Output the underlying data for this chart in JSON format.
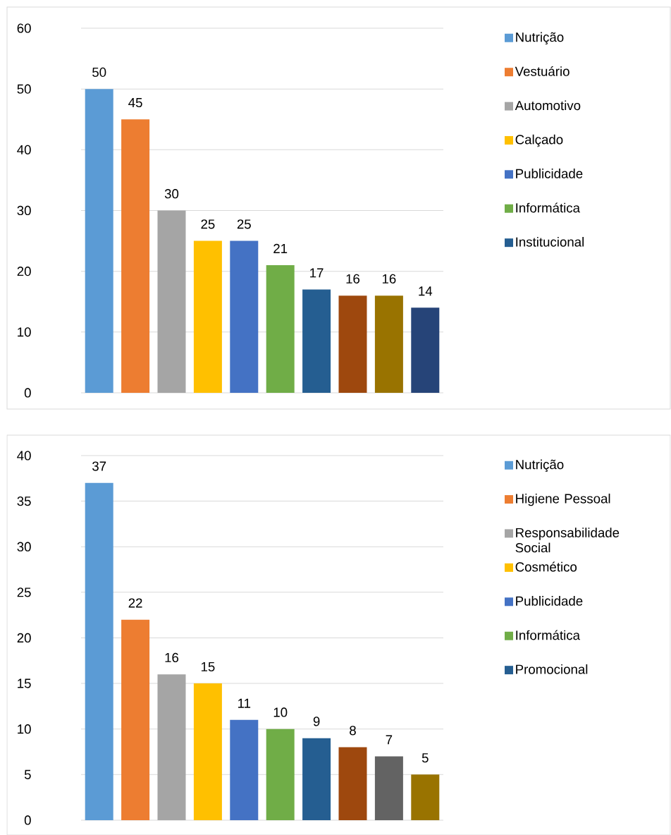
{
  "chart_data": [
    {
      "type": "bar",
      "categories": [
        null,
        null,
        null,
        null,
        null,
        null,
        null,
        null,
        null,
        null
      ],
      "ylim": [
        0,
        60
      ],
      "yticks": [
        0,
        10,
        20,
        30,
        40,
        50,
        60
      ],
      "grid": "y",
      "legend": "right",
      "data_labels": true,
      "series": [
        {
          "name": "Nutrição",
          "color": "#5b9bd5",
          "values": [
            50,
            null,
            null,
            null,
            null,
            null,
            null,
            null,
            null,
            null
          ]
        },
        {
          "name": "Vestuário",
          "color": "#ed7d31",
          "values": [
            null,
            45,
            null,
            null,
            null,
            null,
            null,
            null,
            null,
            null
          ]
        },
        {
          "name": "Automotivo",
          "color": "#a5a5a5",
          "values": [
            null,
            null,
            30,
            null,
            null,
            null,
            null,
            null,
            null,
            null
          ]
        },
        {
          "name": "Calçado",
          "color": "#ffc000",
          "values": [
            null,
            null,
            null,
            25,
            null,
            null,
            null,
            null,
            null,
            null
          ]
        },
        {
          "name": "Publicidade",
          "color": "#4472c4",
          "values": [
            null,
            null,
            null,
            null,
            25,
            null,
            null,
            null,
            null,
            null
          ]
        },
        {
          "name": "Informática",
          "color": "#70ad47",
          "values": [
            null,
            null,
            null,
            null,
            null,
            21,
            null,
            null,
            null,
            null
          ]
        },
        {
          "name": "Institucional",
          "color": "#255e91",
          "values": [
            null,
            null,
            null,
            null,
            null,
            null,
            17,
            null,
            null,
            null
          ]
        },
        {
          "color": "#9e480e",
          "values": [
            null,
            null,
            null,
            null,
            null,
            null,
            null,
            16,
            null,
            null
          ]
        },
        {
          "color": "#997300",
          "values": [
            null,
            null,
            null,
            null,
            null,
            null,
            null,
            null,
            16,
            null
          ]
        },
        {
          "color": "#264478",
          "values": [
            null,
            null,
            null,
            null,
            null,
            null,
            null,
            null,
            null,
            14
          ]
        }
      ]
    },
    {
      "type": "bar",
      "categories": [
        null,
        null,
        null,
        null,
        null,
        null,
        null,
        null,
        null,
        null
      ],
      "ylim": [
        0,
        40
      ],
      "yticks": [
        0,
        5,
        10,
        15,
        20,
        25,
        30,
        35,
        40
      ],
      "grid": "y",
      "legend": "right",
      "data_labels": true,
      "series": [
        {
          "name": "Nutrição",
          "color": "#5b9bd5",
          "values": [
            37,
            null,
            null,
            null,
            null,
            null,
            null,
            null,
            null,
            null
          ]
        },
        {
          "name": "Higiene Pessoal",
          "color": "#ed7d31",
          "values": [
            null,
            22,
            null,
            null,
            null,
            null,
            null,
            null,
            null,
            null
          ]
        },
        {
          "name": "Responsabilidade Social",
          "color": "#a5a5a5",
          "values": [
            null,
            null,
            16,
            null,
            null,
            null,
            null,
            null,
            null,
            null
          ]
        },
        {
          "name": "Cosmético",
          "color": "#ffc000",
          "values": [
            null,
            null,
            null,
            15,
            null,
            null,
            null,
            null,
            null,
            null
          ]
        },
        {
          "name": "Publicidade",
          "color": "#4472c4",
          "values": [
            null,
            null,
            null,
            null,
            11,
            null,
            null,
            null,
            null,
            null
          ]
        },
        {
          "name": "Informática",
          "color": "#70ad47",
          "values": [
            null,
            null,
            null,
            null,
            null,
            10,
            null,
            null,
            null,
            null
          ]
        },
        {
          "name": "Promocional",
          "color": "#255e91",
          "values": [
            null,
            null,
            null,
            null,
            null,
            null,
            9,
            null,
            null,
            null
          ]
        },
        {
          "color": "#9e480e",
          "values": [
            null,
            null,
            null,
            null,
            null,
            null,
            null,
            8,
            null,
            null
          ]
        },
        {
          "color": "#636363",
          "values": [
            null,
            null,
            null,
            null,
            null,
            null,
            null,
            null,
            7,
            null
          ]
        },
        {
          "color": "#997300",
          "values": [
            null,
            null,
            null,
            null,
            null,
            null,
            null,
            null,
            null,
            5
          ]
        }
      ]
    }
  ]
}
